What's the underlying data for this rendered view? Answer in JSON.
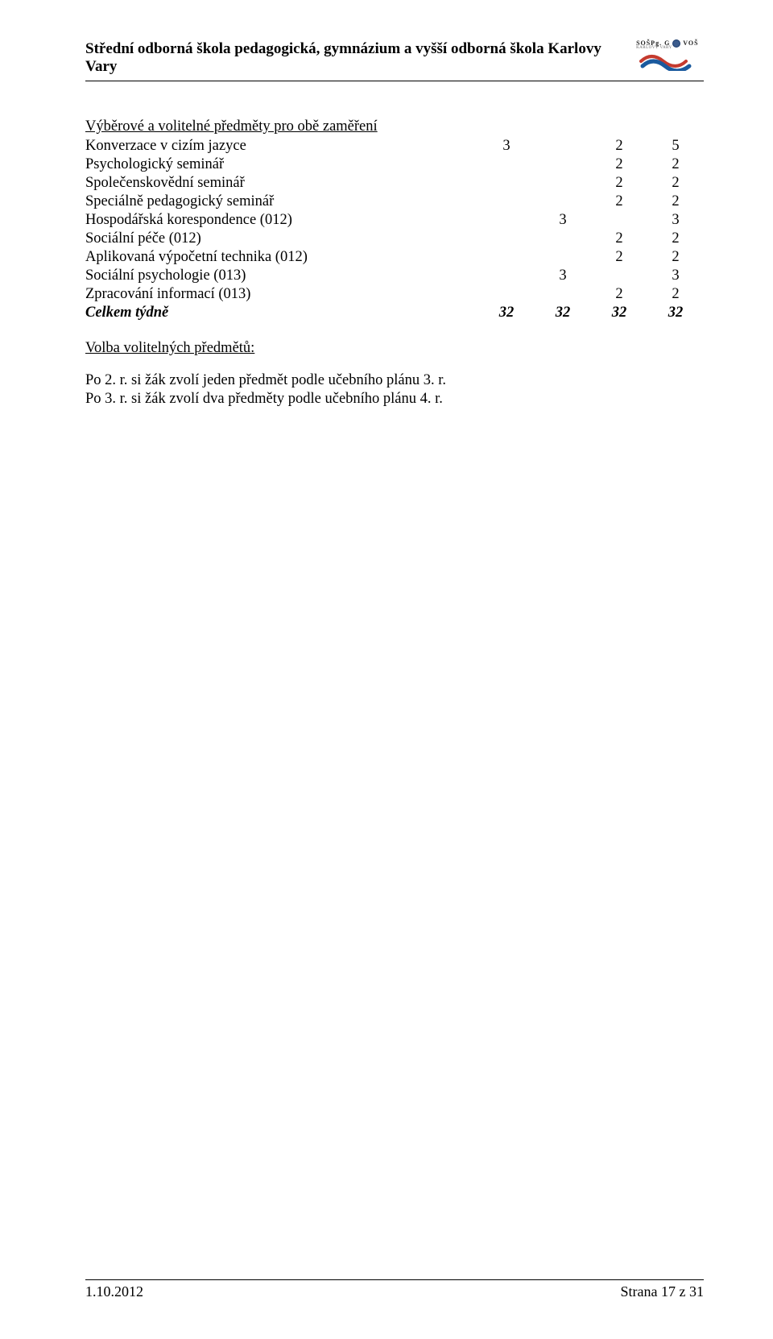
{
  "header": {
    "title": "Střední odborná škola pedagogická, gymnázium a vyšší odborná škola Karlovy Vary",
    "logo_label": "SOŠPg. G",
    "logo_vos": "VOŠ",
    "logo_sub": "KARLOVY VARY",
    "colors": {
      "wave_red": "#c43a2e",
      "wave_blue": "#1a5a9e",
      "circle_fill": "#3b5b8c",
      "circle_border": "#1a3a6c"
    }
  },
  "section": {
    "heading": "Výběrové a volitelné předměty pro obě zaměření",
    "rows": [
      {
        "label": "Konverzace v cizím jazyce",
        "c1": "3",
        "c2": "",
        "c3": "2",
        "c4": "5"
      },
      {
        "label": "Psychologický seminář",
        "c1": "",
        "c2": "",
        "c3": "2",
        "c4": "2"
      },
      {
        "label": "Společenskovědní seminář",
        "c1": "",
        "c2": "",
        "c3": "2",
        "c4": "2"
      },
      {
        "label": "Speciálně pedagogický seminář",
        "c1": "",
        "c2": "",
        "c3": "2",
        "c4": "2"
      },
      {
        "label": "Hospodářská korespondence (012)",
        "c1": "",
        "c2": "3",
        "c3": "",
        "c4": "3"
      },
      {
        "label": "Sociální péče (012)",
        "c1": "",
        "c2": "",
        "c3": "2",
        "c4": "2"
      },
      {
        "label": "Aplikovaná výpočetní technika (012)",
        "c1": "",
        "c2": "",
        "c3": "2",
        "c4": "2"
      },
      {
        "label": "Sociální psychologie (013)",
        "c1": "",
        "c2": "3",
        "c3": "",
        "c4": "3"
      },
      {
        "label": "Zpracování informací (013)",
        "c1": "",
        "c2": "",
        "c3": "2",
        "c4": "2"
      }
    ],
    "total": {
      "label": "Celkem týdně",
      "c1": "32",
      "c2": "32",
      "c3": "32",
      "c4": "32"
    }
  },
  "choice": {
    "heading": "Volba volitelných předmětů:",
    "line1": "Po 2. r. si žák zvolí jeden předmět podle učebního plánu 3. r.",
    "line2": "Po 3. r. si žák zvolí dva předměty podle učebního plánu 4. r."
  },
  "footer": {
    "left": "1.10.2012",
    "right": "Strana 17 z 31"
  }
}
